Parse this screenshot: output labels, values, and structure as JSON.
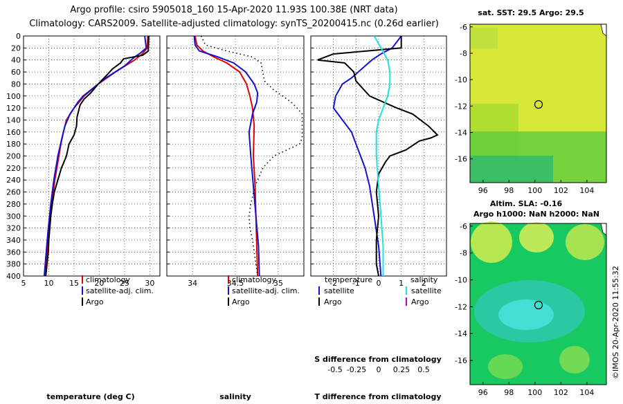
{
  "header": {
    "line1": "Argo profile: csiro 5905018_160 15-Apr-2020 11.93S 100.38E (NRT data)",
    "line2": "Climatology: CARS2009. Satellite-adjusted climatology: synTS_20200415.nc (0.26d earlier)"
  },
  "colors": {
    "climatology": "#e00000",
    "satellite": "#1010d0",
    "argo": "#000000",
    "sal_sat": "#20e0e0",
    "sal_argo": "#c000c0"
  },
  "chart_data": [
    {
      "type": "line",
      "id": "temperature",
      "xlabel": "temperature (deg C)",
      "ylabel": "depth",
      "xlim": [
        5,
        32
      ],
      "ylim": [
        400,
        0
      ],
      "xticks": [
        5,
        10,
        15,
        20,
        25,
        30
      ],
      "yticks": [
        0,
        20,
        40,
        60,
        80,
        100,
        120,
        140,
        160,
        180,
        200,
        220,
        240,
        260,
        280,
        300,
        320,
        340,
        360,
        380,
        400
      ],
      "legend": {
        "position": "lower-right",
        "entries": [
          "climatology",
          "satellite-adj. clim.",
          "Argo"
        ]
      },
      "series": [
        {
          "name": "climatology",
          "color": "red",
          "depth": [
            0,
            20,
            30,
            40,
            60,
            80,
            100,
            120,
            140,
            160,
            180,
            200,
            240,
            280,
            320,
            360,
            400
          ],
          "values": [
            29.6,
            29.5,
            28.5,
            27.0,
            23.2,
            19.8,
            17.0,
            15.0,
            13.5,
            12.9,
            12.4,
            12.0,
            11.2,
            10.6,
            10.1,
            9.7,
            9.3
          ]
        },
        {
          "name": "satellite-adj. clim.",
          "color": "blue",
          "depth": [
            0,
            20,
            28,
            35,
            50,
            70,
            90,
            100,
            110,
            130,
            150,
            170,
            200,
            240,
            280,
            320,
            360,
            400
          ],
          "values": [
            29.0,
            29.3,
            28.2,
            27.0,
            25.0,
            21.3,
            18.3,
            16.8,
            15.8,
            14.2,
            13.2,
            12.6,
            11.8,
            11.0,
            10.4,
            9.9,
            9.5,
            9.1
          ]
        },
        {
          "name": "Argo",
          "color": "black",
          "depth": [
            0,
            25,
            32,
            38,
            45,
            55,
            65,
            80,
            95,
            105,
            115,
            135,
            150,
            165,
            180,
            200,
            210,
            220,
            240,
            260,
            280,
            300,
            340,
            360,
            400
          ],
          "values": [
            29.8,
            29.7,
            28.6,
            24.8,
            24.2,
            22.6,
            21.5,
            19.8,
            18.3,
            17.0,
            16.2,
            15.6,
            15.5,
            15.0,
            14.0,
            13.5,
            13.0,
            12.5,
            11.8,
            11.1,
            10.7,
            10.4,
            10.0,
            9.9,
            9.4
          ]
        }
      ]
    },
    {
      "type": "line",
      "id": "salinity",
      "xlabel": "salinity",
      "xlim": [
        33.7,
        35.3
      ],
      "ylim": [
        400,
        0
      ],
      "xticks": [
        34,
        34.5,
        35
      ],
      "legend": {
        "position": "lower-right",
        "entries": [
          "climatology",
          "satellite-adj. clim.",
          "Argo"
        ]
      },
      "series": [
        {
          "name": "climatology",
          "color": "red",
          "depth": [
            0,
            15,
            25,
            35,
            45,
            60,
            80,
            100,
            120,
            150,
            200,
            250,
            300,
            350,
            400
          ],
          "values": [
            34.03,
            34.05,
            34.12,
            34.25,
            34.4,
            34.55,
            34.63,
            34.67,
            34.7,
            34.72,
            34.71,
            34.73,
            34.74,
            34.75,
            34.76
          ]
        },
        {
          "name": "satellite-adj. clim.",
          "color": "blue",
          "depth": [
            0,
            15,
            25,
            35,
            45,
            60,
            80,
            95,
            110,
            130,
            160,
            200,
            250,
            300,
            350,
            400
          ],
          "values": [
            34.02,
            34.03,
            34.08,
            34.3,
            34.48,
            34.62,
            34.72,
            34.76,
            34.75,
            34.7,
            34.66,
            34.68,
            34.71,
            34.74,
            34.77,
            34.78
          ]
        },
        {
          "name": "Argo",
          "color": "black",
          "dashed": true,
          "depth": [
            0,
            15,
            25,
            35,
            45,
            60,
            75,
            90,
            100,
            110,
            120,
            130,
            150,
            170,
            180,
            200,
            220,
            250,
            280,
            300,
            320,
            340,
            360,
            400
          ],
          "values": [
            34.1,
            34.15,
            34.4,
            34.7,
            34.8,
            34.82,
            34.84,
            34.95,
            35.05,
            35.15,
            35.22,
            35.28,
            35.28,
            35.28,
            35.25,
            34.95,
            34.82,
            34.73,
            34.68,
            34.66,
            34.67,
            34.7,
            34.72,
            34.76
          ]
        }
      ]
    },
    {
      "type": "line",
      "id": "difference",
      "xlabel": "T difference from climatology",
      "x2label": "S difference from climatology",
      "xlim": [
        -3,
        3
      ],
      "ylim": [
        400,
        0
      ],
      "xticks": [
        -2,
        -1,
        0,
        1,
        2
      ],
      "x2ticks_label": [
        "-0.5",
        "-0.25",
        "0",
        "0.25",
        "0.5"
      ],
      "legend": {
        "position": "lower",
        "entries_T": [
          "temperature",
          "satellite",
          "Argo"
        ],
        "entries_S": [
          "salinity",
          "satellite",
          "Argo"
        ]
      },
      "series": [
        {
          "name": "temperature satellite",
          "color": "blue",
          "depth": [
            0,
            20,
            30,
            40,
            50,
            60,
            70,
            80,
            100,
            120,
            140,
            160,
            180,
            200,
            220,
            250,
            300,
            350,
            400
          ],
          "values": [
            1.0,
            0.6,
            0.1,
            -0.3,
            -0.6,
            -0.9,
            -1.2,
            -1.6,
            -1.9,
            -2.0,
            -1.6,
            -1.2,
            -1.0,
            -0.8,
            -0.6,
            -0.4,
            -0.2,
            0.0,
            0.1
          ]
        },
        {
          "name": "temperature Argo",
          "color": "black",
          "depth": [
            0,
            20,
            30,
            40,
            45,
            60,
            75,
            100,
            120,
            130,
            150,
            165,
            170,
            175,
            190,
            200,
            210,
            230,
            260,
            300,
            340,
            380,
            400
          ],
          "values": [
            1.0,
            1.0,
            -2.0,
            -2.7,
            -1.5,
            -1.1,
            -1.0,
            -0.4,
            0.8,
            1.5,
            2.2,
            2.6,
            2.3,
            1.8,
            1.2,
            0.5,
            0.3,
            0.0,
            -0.1,
            0.0,
            -0.1,
            -0.1,
            0.0
          ]
        },
        {
          "name": "salinity satellite",
          "color": "cyan",
          "depth": [
            0,
            20,
            40,
            60,
            80,
            100,
            120,
            140,
            160,
            200,
            250,
            300,
            350,
            400
          ],
          "values": [
            -0.2,
            0.1,
            0.4,
            0.5,
            0.5,
            0.4,
            0.2,
            0.0,
            -0.1,
            -0.1,
            0.0,
            0.1,
            0.2,
            0.2
          ]
        }
      ]
    },
    {
      "type": "heatmap",
      "id": "sst_map",
      "title": "sat. SST: 29.5 Argo: 29.5",
      "xticks": [
        96,
        98,
        100,
        102,
        104
      ],
      "yticks": [
        -6,
        -8,
        -10,
        -12,
        -14,
        -16
      ],
      "xlim": [
        95,
        105.5
      ],
      "ylim": [
        -17.8,
        -5.8
      ],
      "marker": {
        "lon": 100.38,
        "lat": -11.93
      }
    },
    {
      "type": "heatmap",
      "id": "sla_map",
      "title": "Altim. SLA: -0.16",
      "subtitle": "Argo h1000: NaN h2000: NaN",
      "xticks": [
        96,
        98,
        100,
        102,
        104
      ],
      "yticks": [
        -6,
        -8,
        -10,
        -12,
        -14,
        -16
      ],
      "xlim": [
        95,
        105.5
      ],
      "ylim": [
        -17.8,
        -5.8
      ],
      "marker": {
        "lon": 100.38,
        "lat": -11.93
      }
    }
  ],
  "footer": {
    "credit": "©IMOS 20-Apr-2020 11:55:32"
  }
}
